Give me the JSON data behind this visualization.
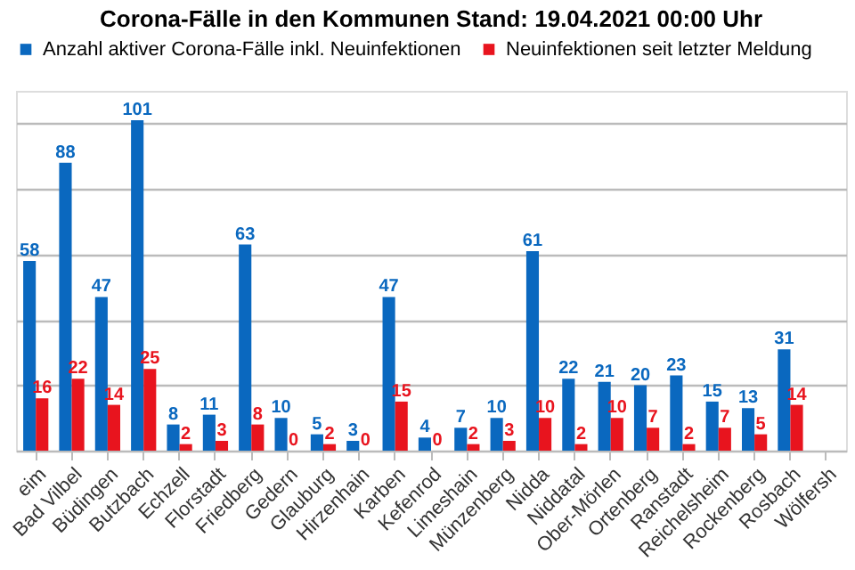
{
  "chart_data": {
    "type": "bar",
    "title": "Corona-Fälle in den Kommunen Stand: 19.04.2021 00:00 Uhr",
    "categories": [
      "eim",
      "Bad Vilbel",
      "Büdingen",
      "Butzbach",
      "Echzell",
      "Florstadt",
      "Friedberg",
      "Gedern",
      "Glauburg",
      "Hirzenhain",
      "Karben",
      "Kefenrod",
      "Limeshain",
      "Münzenberg",
      "Nidda",
      "Niddatal",
      "Ober-Mörlen",
      "Ortenberg",
      "Ranstadt",
      "Reichelsheim",
      "Rockenberg",
      "Rosbach",
      "Wölfersh"
    ],
    "series": [
      {
        "name": "Anzahl aktiver Corona-Fälle inkl. Neuinfektionen",
        "color": "#0a68bf",
        "values": [
          58,
          88,
          47,
          101,
          8,
          11,
          63,
          10,
          5,
          3,
          47,
          4,
          7,
          10,
          61,
          22,
          21,
          20,
          23,
          15,
          13,
          31,
          null
        ]
      },
      {
        "name": "Neuinfektionen seit letzter Meldung",
        "color": "#e8141e",
        "values": [
          16,
          22,
          14,
          25,
          2,
          3,
          8,
          0,
          2,
          0,
          15,
          0,
          2,
          3,
          10,
          2,
          10,
          7,
          2,
          7,
          5,
          14,
          null
        ]
      }
    ],
    "ylim": [
      0,
      110
    ],
    "yticks": [
      {
        "value": 0,
        "label": null
      },
      {
        "value": 20,
        "label": null
      },
      {
        "value": 40,
        "label": null
      },
      {
        "value": 60,
        "label": null
      },
      {
        "value": 80,
        "label": null
      },
      {
        "value": 100,
        "label": null
      }
    ],
    "tick_labels": "x",
    "grid": "y",
    "legend": "top left",
    "data_labels": true
  }
}
